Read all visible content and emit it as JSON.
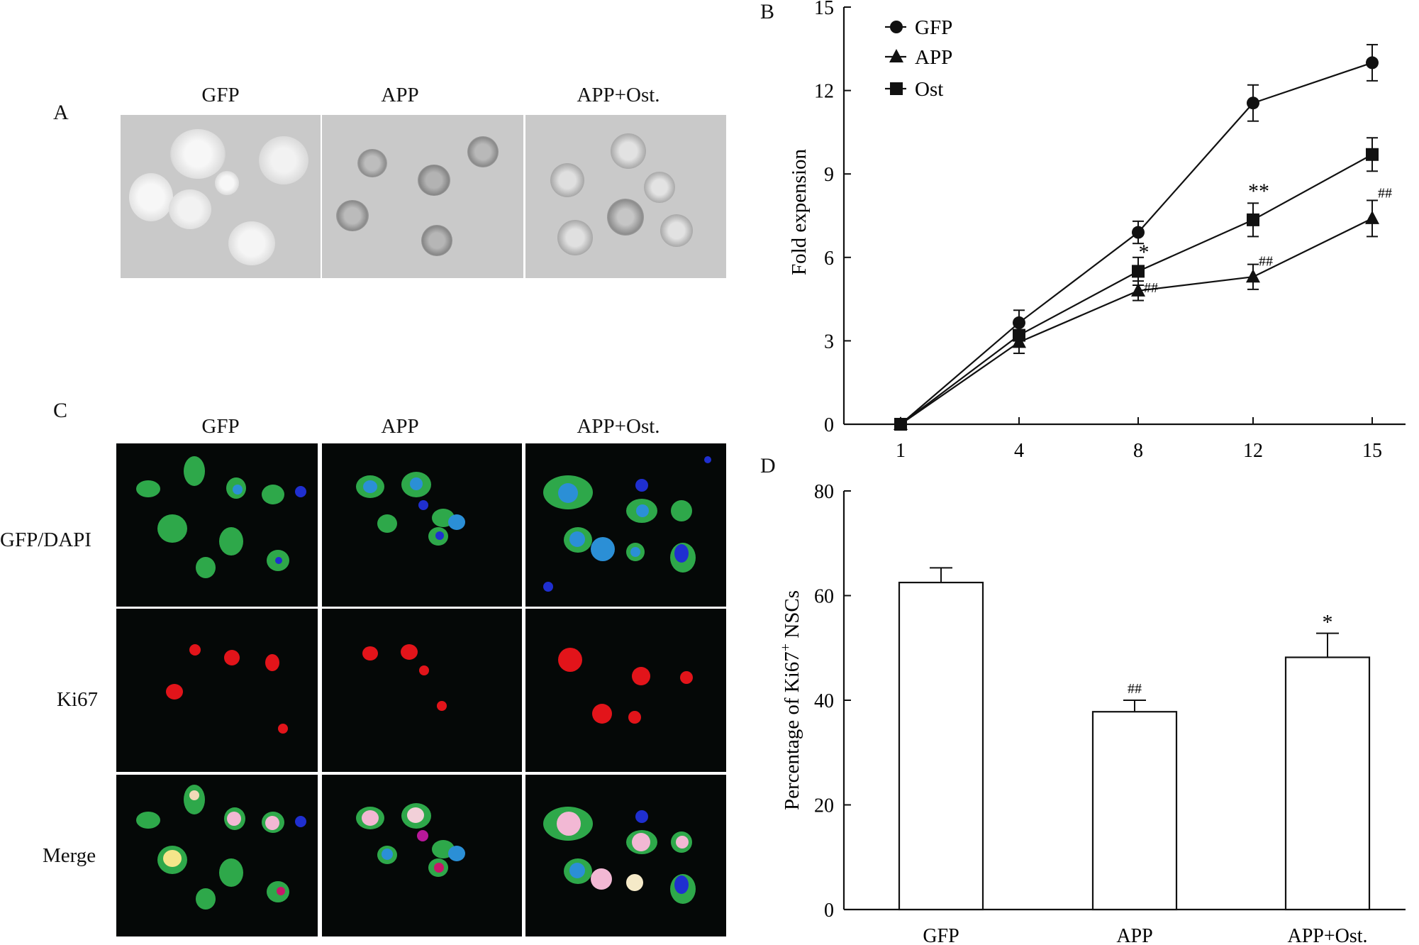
{
  "panel_labels": {
    "a": "A",
    "b": "B",
    "c": "C",
    "d": "D"
  },
  "group_labels": [
    "GFP",
    "APP",
    "APP+Ost."
  ],
  "channel_labels": [
    "GFP/DAPI",
    "Ki67",
    "Merge"
  ],
  "colors": {
    "gfp_green": "#2ea84a",
    "dapi_blue": "#1f2fd0",
    "ki67_red": "#e2141a",
    "merge_pink": "#f2b8d4"
  },
  "chart_data": [
    {
      "type": "line",
      "panel": "B",
      "x": [
        1,
        4,
        8,
        12,
        15
      ],
      "ylabel": "Fold expension",
      "ylim": [
        0,
        15
      ],
      "yticks": [
        0,
        3,
        6,
        9,
        12,
        15
      ],
      "legend_position": "top-left",
      "series": [
        {
          "name": "GFP",
          "marker": "circle",
          "values": [
            0,
            3.65,
            6.9,
            11.55,
            13.0
          ],
          "errors": [
            0,
            0.45,
            0.4,
            0.65,
            0.65
          ]
        },
        {
          "name": "APP",
          "marker": "triangle",
          "values": [
            0,
            2.95,
            4.8,
            5.3,
            7.4
          ],
          "errors": [
            0,
            0.4,
            0.35,
            0.45,
            0.65
          ]
        },
        {
          "name": "Ost",
          "marker": "square",
          "values": [
            0,
            3.2,
            5.5,
            7.35,
            9.7
          ],
          "errors": [
            0,
            0.4,
            0.5,
            0.6,
            0.6
          ]
        }
      ],
      "annotations": [
        {
          "text": "*",
          "x": 8,
          "y": 6.3
        },
        {
          "text": "##",
          "x": 8,
          "y": 4.95
        },
        {
          "text": "**",
          "x": 12,
          "y": 8.5
        },
        {
          "text": "##",
          "x": 12,
          "y": 5.9
        },
        {
          "text": "##",
          "x": 15,
          "y": 8.35
        }
      ]
    },
    {
      "type": "bar",
      "panel": "D",
      "categories": [
        "GFP",
        "APP",
        "APP+Ost."
      ],
      "values": [
        62.5,
        37.8,
        48.2
      ],
      "errors": [
        2.8,
        2.2,
        4.6
      ],
      "ylabel_parts": [
        "Percentage of Ki67",
        "+",
        " NSCs"
      ],
      "ylim": [
        0,
        80
      ],
      "yticks": [
        0,
        20,
        40,
        60,
        80
      ],
      "annotations": [
        "",
        "##",
        "*"
      ]
    }
  ]
}
